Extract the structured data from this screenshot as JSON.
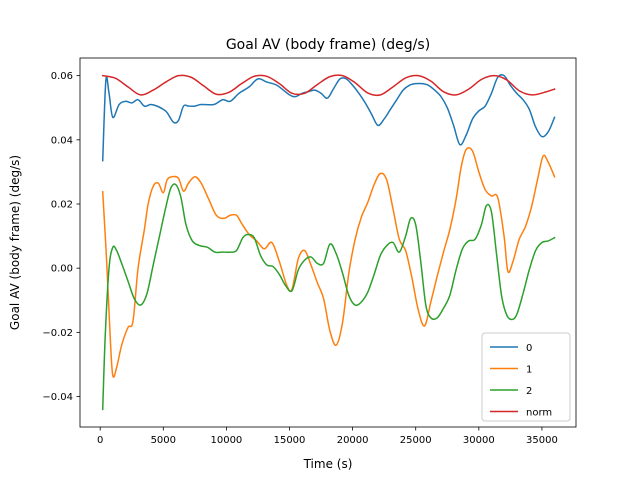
{
  "chart_data": {
    "type": "line",
    "title": "Goal AV (body frame) (deg/s)",
    "xlabel": "Time (s)",
    "ylabel": "Goal AV (body frame) (deg/s)",
    "xlim": [
      -1600,
      37700
    ],
    "ylim": [
      -0.0495,
      0.0655
    ],
    "xticks": [
      0,
      5000,
      10000,
      15000,
      20000,
      25000,
      30000,
      35000
    ],
    "xtick_labels": [
      "0",
      "5000",
      "10000",
      "15000",
      "20000",
      "25000",
      "30000",
      "35000"
    ],
    "yticks": [
      -0.04,
      -0.02,
      0.0,
      0.02,
      0.04,
      0.06
    ],
    "ytick_labels": [
      "−0.04",
      "−0.02",
      "0.00",
      "0.02",
      "0.04",
      "0.06"
    ],
    "legend_position": "lower-right",
    "series": [
      {
        "name": "0",
        "color": "#1f77b4",
        "x": [
          200,
          450,
          700,
          1000,
          1500,
          2000,
          2500,
          3000,
          3500,
          4000,
          4500,
          5000,
          5300,
          5800,
          6200,
          6600,
          7000,
          7500,
          8000,
          9000,
          9700,
          10300,
          11000,
          11800,
          12500,
          13200,
          14000,
          15000,
          15500,
          16000,
          16500,
          17000,
          17500,
          18000,
          18500,
          19000,
          19500,
          20000,
          20500,
          21000,
          21500,
          22000,
          22500,
          23000,
          23500,
          24000,
          24500,
          25000,
          25500,
          26000,
          26500,
          27000,
          27500,
          28000,
          28500,
          29000,
          29500,
          30000,
          30500,
          31000,
          31500,
          32000,
          32500,
          33000,
          33500,
          34000,
          34500,
          35000,
          35500,
          36000
        ],
        "y": [
          0.0335,
          0.0585,
          0.0545,
          0.047,
          0.051,
          0.052,
          0.0515,
          0.0525,
          0.0505,
          0.051,
          0.0505,
          0.0495,
          0.0485,
          0.0455,
          0.046,
          0.0505,
          0.0505,
          0.0505,
          0.051,
          0.051,
          0.0525,
          0.052,
          0.0545,
          0.0565,
          0.059,
          0.058,
          0.057,
          0.054,
          0.0535,
          0.0545,
          0.055,
          0.0555,
          0.0545,
          0.053,
          0.056,
          0.059,
          0.059,
          0.057,
          0.0545,
          0.0515,
          0.048,
          0.0445,
          0.0465,
          0.0495,
          0.0525,
          0.0555,
          0.057,
          0.0575,
          0.0575,
          0.057,
          0.0555,
          0.0535,
          0.05,
          0.0445,
          0.0385,
          0.0415,
          0.0465,
          0.049,
          0.0505,
          0.0545,
          0.0595,
          0.06,
          0.057,
          0.0545,
          0.0525,
          0.0495,
          0.044,
          0.041,
          0.0425,
          0.047
        ]
      },
      {
        "name": "1",
        "color": "#ff7f0e",
        "x": [
          200,
          500,
          800,
          1000,
          1300,
          1700,
          2200,
          2600,
          3000,
          3500,
          3800,
          4200,
          4600,
          5000,
          5300,
          5700,
          6200,
          6600,
          7000,
          7500,
          8000,
          8600,
          9200,
          9800,
          10300,
          10800,
          11200,
          11800,
          12400,
          13000,
          13600,
          14200,
          14800,
          15200,
          15700,
          16200,
          16700,
          17200,
          17700,
          18200,
          18700,
          19200,
          19700,
          20200,
          20700,
          21200,
          21700,
          22200,
          22700,
          23200,
          23700,
          24200,
          24700,
          25200,
          25700,
          26200,
          26700,
          27200,
          27700,
          28200,
          28600,
          29000,
          29500,
          30000,
          30500,
          31000,
          31500,
          32000,
          32300,
          32700,
          33200,
          33700,
          34200,
          34700,
          35100,
          35500,
          36000
        ],
        "y": [
          0.0238,
          0.003,
          -0.022,
          -0.0335,
          -0.031,
          -0.024,
          -0.0185,
          -0.0165,
          0.0,
          0.012,
          0.02,
          0.0255,
          0.0265,
          0.0235,
          0.0275,
          0.0285,
          0.028,
          0.024,
          0.0265,
          0.0285,
          0.0265,
          0.0215,
          0.0165,
          0.0155,
          0.0165,
          0.0165,
          0.014,
          0.0105,
          0.0085,
          0.006,
          0.008,
          0.002,
          -0.0055,
          -0.0065,
          0.003,
          0.0055,
          0.001,
          -0.0045,
          -0.0095,
          -0.0195,
          -0.024,
          -0.017,
          -0.0015,
          0.009,
          0.016,
          0.0205,
          0.026,
          0.0295,
          0.0275,
          0.0185,
          0.009,
          0.0055,
          -0.003,
          -0.013,
          -0.018,
          -0.0105,
          -0.0025,
          0.005,
          0.012,
          0.0215,
          0.0315,
          0.037,
          0.0365,
          0.03,
          0.0245,
          0.0225,
          0.022,
          0.01,
          -0.001,
          0.002,
          0.009,
          0.013,
          0.0195,
          0.0285,
          0.035,
          0.033,
          0.0285
        ]
      },
      {
        "name": "2",
        "color": "#2ca02c",
        "x": [
          200,
          400,
          700,
          1000,
          1300,
          1700,
          2200,
          2700,
          3200,
          3700,
          4200,
          4700,
          5200,
          5600,
          6000,
          6400,
          6800,
          7300,
          7900,
          8500,
          9100,
          9700,
          10300,
          10800,
          11300,
          11700,
          12200,
          12700,
          13200,
          13700,
          14200,
          14700,
          15200,
          15700,
          16200,
          16700,
          17200,
          17700,
          18200,
          18700,
          19200,
          19700,
          20200,
          20700,
          21200,
          21700,
          22200,
          22700,
          23200,
          23700,
          24200,
          24600,
          25000,
          25400,
          25800,
          26200,
          26700,
          27200,
          27700,
          28200,
          28700,
          29200,
          29700,
          30200,
          30600,
          31000,
          31400,
          31800,
          32200,
          32600,
          33000,
          33500,
          34000,
          34500,
          35000,
          35500,
          36000
        ],
        "y": [
          -0.044,
          -0.021,
          0.0,
          0.0065,
          0.0055,
          0.0015,
          -0.004,
          -0.0095,
          -0.0115,
          -0.008,
          0.001,
          0.01,
          0.019,
          0.025,
          0.026,
          0.022,
          0.0135,
          0.0085,
          0.007,
          0.0065,
          0.005,
          0.005,
          0.005,
          0.0055,
          0.0095,
          0.0105,
          0.0095,
          0.004,
          0.001,
          0.0005,
          -0.002,
          -0.0055,
          -0.007,
          -0.0005,
          0.0025,
          0.0035,
          0.0015,
          0.0015,
          0.0075,
          0.0045,
          -0.0015,
          -0.0085,
          -0.0115,
          -0.0105,
          -0.0075,
          -0.002,
          0.004,
          0.007,
          0.008,
          0.005,
          0.01,
          0.0155,
          0.0135,
          0.002,
          -0.0115,
          -0.0155,
          -0.0155,
          -0.0125,
          -0.0085,
          -0.0005,
          0.006,
          0.0085,
          0.009,
          0.0135,
          0.0195,
          0.0175,
          0.0045,
          -0.0085,
          -0.0145,
          -0.016,
          -0.0145,
          -0.008,
          -0.0005,
          0.0055,
          0.008,
          0.0085,
          0.0095
        ]
      },
      {
        "name": "norm",
        "color": "#d62728",
        "x": [
          200,
          1200,
          2200,
          3200,
          4200,
          5200,
          6200,
          7200,
          8200,
          9200,
          10200,
          11200,
          12200,
          13200,
          14200,
          15200,
          16200,
          17200,
          18200,
          19200,
          20200,
          21200,
          22200,
          23200,
          24200,
          25200,
          26200,
          27200,
          28200,
          29200,
          30200,
          31200,
          32200,
          33200,
          34200,
          35200,
          36000
        ],
        "y": [
          0.06,
          0.0592,
          0.0565,
          0.054,
          0.0555,
          0.058,
          0.06,
          0.0595,
          0.0568,
          0.0542,
          0.0548,
          0.0575,
          0.0598,
          0.0598,
          0.0575,
          0.0545,
          0.0545,
          0.0572,
          0.0597,
          0.06,
          0.0578,
          0.0546,
          0.054,
          0.0565,
          0.0593,
          0.06,
          0.0583,
          0.055,
          0.054,
          0.0558,
          0.0588,
          0.06,
          0.0587,
          0.0553,
          0.054,
          0.0548,
          0.0558
        ]
      }
    ]
  }
}
